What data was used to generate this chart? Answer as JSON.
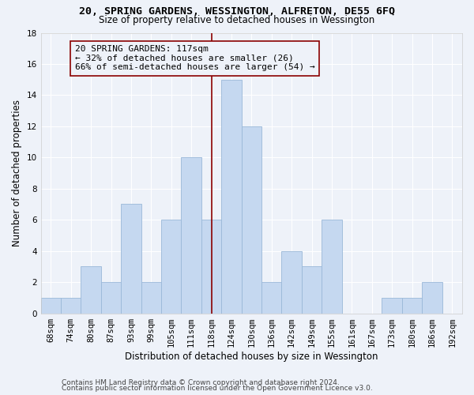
{
  "title": "20, SPRING GARDENS, WESSINGTON, ALFRETON, DE55 6FQ",
  "subtitle": "Size of property relative to detached houses in Wessington",
  "xlabel": "Distribution of detached houses by size in Wessington",
  "ylabel": "Number of detached properties",
  "bins": [
    "68sqm",
    "74sqm",
    "80sqm",
    "87sqm",
    "93sqm",
    "99sqm",
    "105sqm",
    "111sqm",
    "118sqm",
    "124sqm",
    "130sqm",
    "136sqm",
    "142sqm",
    "149sqm",
    "155sqm",
    "161sqm",
    "167sqm",
    "173sqm",
    "180sqm",
    "186sqm",
    "192sqm"
  ],
  "values": [
    1,
    1,
    3,
    2,
    7,
    2,
    6,
    10,
    6,
    15,
    12,
    2,
    4,
    3,
    6,
    0,
    0,
    1,
    1,
    2,
    0
  ],
  "bar_color": "#c5d8f0",
  "bar_edgecolor": "#9ab8d8",
  "vline_x_index": 8,
  "vline_color": "#8b0000",
  "annotation_text": "20 SPRING GARDENS: 117sqm\n← 32% of detached houses are smaller (26)\n66% of semi-detached houses are larger (54) →",
  "annotation_box_edgecolor": "#8b0000",
  "ylim": [
    0,
    18
  ],
  "yticks": [
    0,
    2,
    4,
    6,
    8,
    10,
    12,
    14,
    16,
    18
  ],
  "footer1": "Contains HM Land Registry data © Crown copyright and database right 2024.",
  "footer2": "Contains public sector information licensed under the Open Government Licence v3.0.",
  "bg_color": "#eef2f9",
  "grid_color": "#ffffff",
  "title_fontsize": 9.5,
  "subtitle_fontsize": 8.5,
  "xlabel_fontsize": 8.5,
  "ylabel_fontsize": 8.5,
  "tick_fontsize": 7.5,
  "annotation_fontsize": 8,
  "footer_fontsize": 6.5
}
